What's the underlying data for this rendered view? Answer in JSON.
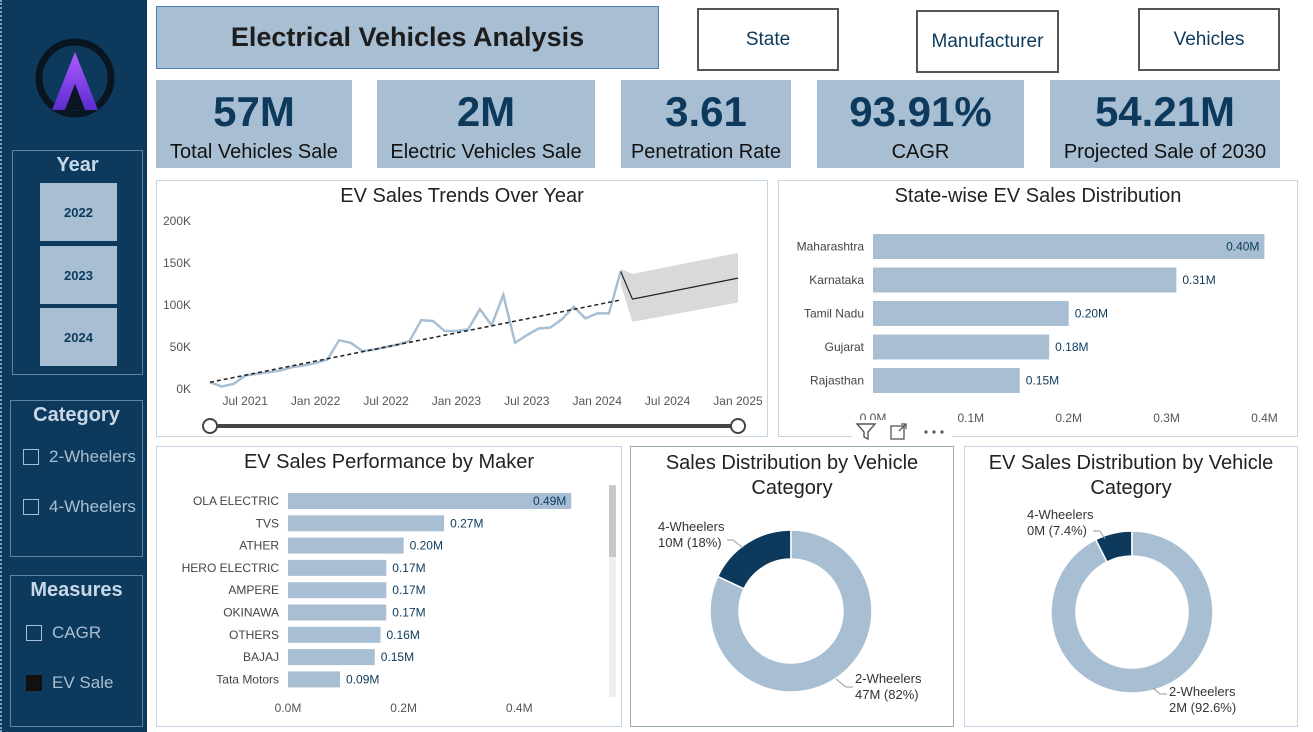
{
  "header": {
    "title": "Electrical Vehicles Analysis",
    "nav": [
      "State",
      "Manufacturer",
      "Vehicles"
    ]
  },
  "sidebar": {
    "logo_icon": "A-logo-icon",
    "year": {
      "title": "Year",
      "options": [
        "2022",
        "2023",
        "2024"
      ]
    },
    "category": {
      "title": "Category",
      "options": [
        {
          "label": "2-Wheelers",
          "checked": false
        },
        {
          "label": "4-Wheelers",
          "checked": false
        }
      ]
    },
    "measures": {
      "title": "Measures",
      "options": [
        {
          "label": "CAGR",
          "checked": false
        },
        {
          "label": "EV Sale",
          "checked": true
        }
      ]
    }
  },
  "kpis": [
    {
      "value": "57M",
      "label": "Total Vehicles Sale"
    },
    {
      "value": "2M",
      "label": "Electric Vehicles Sale"
    },
    {
      "value": "3.61",
      "label": "Penetration Rate"
    },
    {
      "value": "93.91%",
      "label": "CAGR"
    },
    {
      "value": "54.21M",
      "label": "Projected Sale of 2030"
    }
  ],
  "visual_header_icons": [
    "filter-icon",
    "focus-mode-icon",
    "more-options-icon"
  ],
  "colors": {
    "navy": "#0d3a5c",
    "light_blue": "#a8bfd3",
    "forecast_band": "#d9d9d9"
  },
  "chart_data": [
    {
      "type": "line",
      "title": "EV Sales Trends Over Year",
      "yticks": [
        "0K",
        "50K",
        "100K",
        "150K",
        "200K"
      ],
      "ylim": [
        0,
        200000
      ],
      "xticks": [
        "Jul 2021",
        "Jan 2022",
        "Jul 2022",
        "Jan 2023",
        "Jul 2023",
        "Jan 2024",
        "Jul 2024",
        "Jan 2025"
      ],
      "xlim": [
        "2021-04",
        "2025-01"
      ],
      "series": [
        {
          "values": [
            {
              "x": "2021-04",
              "y": 8000
            },
            {
              "x": "2021-05",
              "y": 3000
            },
            {
              "x": "2021-06",
              "y": 6000
            },
            {
              "x": "2021-07",
              "y": 16000
            },
            {
              "x": "2021-08",
              "y": 18000
            },
            {
              "x": "2021-09",
              "y": 20000
            },
            {
              "x": "2021-10",
              "y": 22000
            },
            {
              "x": "2021-11",
              "y": 26000
            },
            {
              "x": "2021-12",
              "y": 28000
            },
            {
              "x": "2022-01",
              "y": 31000
            },
            {
              "x": "2022-02",
              "y": 35000
            },
            {
              "x": "2022-03",
              "y": 58000
            },
            {
              "x": "2022-04",
              "y": 55000
            },
            {
              "x": "2022-05",
              "y": 45000
            },
            {
              "x": "2022-06",
              "y": 47000
            },
            {
              "x": "2022-07",
              "y": 50000
            },
            {
              "x": "2022-08",
              "y": 53000
            },
            {
              "x": "2022-09",
              "y": 57000
            },
            {
              "x": "2022-10",
              "y": 82000
            },
            {
              "x": "2022-11",
              "y": 81000
            },
            {
              "x": "2022-12",
              "y": 69000
            },
            {
              "x": "2023-01",
              "y": 69000
            },
            {
              "x": "2023-02",
              "y": 71000
            },
            {
              "x": "2023-03",
              "y": 95000
            },
            {
              "x": "2023-04",
              "y": 76000
            },
            {
              "x": "2023-05",
              "y": 112000
            },
            {
              "x": "2023-06",
              "y": 55000
            },
            {
              "x": "2023-07",
              "y": 64000
            },
            {
              "x": "2023-08",
              "y": 72000
            },
            {
              "x": "2023-09",
              "y": 73000
            },
            {
              "x": "2023-10",
              "y": 83000
            },
            {
              "x": "2023-11",
              "y": 98000
            },
            {
              "x": "2023-12",
              "y": 84000
            },
            {
              "x": "2024-01",
              "y": 90000
            },
            {
              "x": "2024-02",
              "y": 90000
            },
            {
              "x": "2024-03",
              "y": 140000
            }
          ]
        }
      ],
      "trend": [
        {
          "x": "2021-04",
          "y": 8000
        },
        {
          "x": "2024-03",
          "y": 106000
        }
      ],
      "forecast": [
        {
          "x": "2024-03",
          "y": 140000
        },
        {
          "x": "2024-04",
          "y": 107000
        },
        {
          "x": "2025-01",
          "y": 132000
        }
      ],
      "forecast_band": {
        "upper": [
          {
            "x": "2024-03",
            "y": 143000
          },
          {
            "x": "2024-04",
            "y": 137000
          },
          {
            "x": "2025-01",
            "y": 162000
          }
        ],
        "lower": [
          {
            "x": "2024-03",
            "y": 125000
          },
          {
            "x": "2024-04",
            "y": 80000
          },
          {
            "x": "2025-01",
            "y": 103000
          }
        ]
      },
      "grid": false
    },
    {
      "type": "bar",
      "orientation": "horizontal",
      "title": "State-wise EV Sales Distribution",
      "categories": [
        "Maharashtra",
        "Karnataka",
        "Tamil Nadu",
        "Gujarat",
        "Rajasthan"
      ],
      "values": [
        0.4,
        0.31,
        0.2,
        0.18,
        0.15
      ],
      "data_labels": [
        "0.40M",
        "0.31M",
        "0.20M",
        "0.18M",
        "0.15M"
      ],
      "xticks": [
        "0.0M",
        "0.1M",
        "0.2M",
        "0.3M",
        "0.4M"
      ],
      "xlim": [
        0,
        0.42
      ]
    },
    {
      "type": "bar",
      "orientation": "horizontal",
      "title": "EV Sales Performance by Maker",
      "categories": [
        "OLA ELECTRIC",
        "TVS",
        "ATHER",
        "HERO ELECTRIC",
        "AMPERE",
        "OKINAWA",
        "OTHERS",
        "BAJAJ",
        "Tata Motors"
      ],
      "values": [
        0.49,
        0.27,
        0.2,
        0.17,
        0.17,
        0.17,
        0.16,
        0.15,
        0.09
      ],
      "data_labels": [
        "0.49M",
        "0.27M",
        "0.20M",
        "0.17M",
        "0.17M",
        "0.17M",
        "0.16M",
        "0.15M",
        "0.09M"
      ],
      "xticks": [
        "0.0M",
        "0.2M",
        "0.4M"
      ],
      "xlim": [
        0,
        0.55
      ]
    },
    {
      "type": "pie",
      "subtype": "donut",
      "title": "Sales Distribution by Vehicle Category",
      "slices": [
        {
          "label": "4-Wheelers",
          "value": 18,
          "text": "10M (18%)",
          "color": "#0d3a5c"
        },
        {
          "label": "2-Wheelers",
          "value": 82,
          "text": "47M (82%)",
          "color": "#a8bfd3"
        }
      ]
    },
    {
      "type": "pie",
      "subtype": "donut",
      "title": "EV Sales Distribution by Vehicle Category",
      "slices": [
        {
          "label": "4-Wheelers",
          "value": 7.4,
          "text": "0M (7.4%)",
          "color": "#0d3a5c"
        },
        {
          "label": "2-Wheelers",
          "value": 92.6,
          "text": "2M (92.6%)",
          "color": "#a8bfd3"
        }
      ]
    }
  ]
}
